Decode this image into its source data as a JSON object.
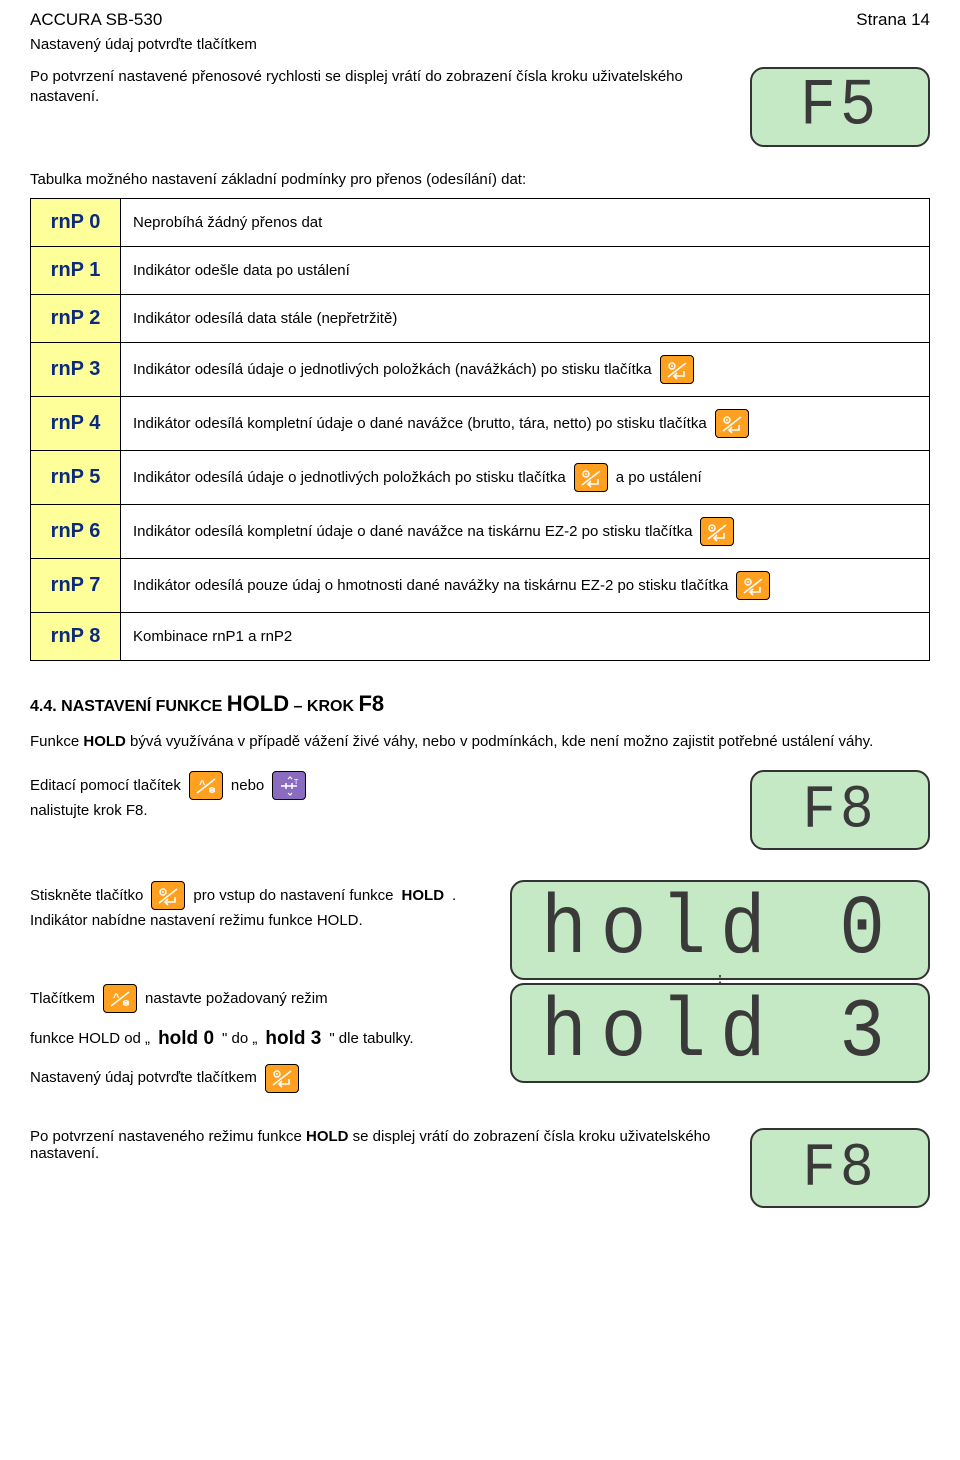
{
  "header": {
    "left": "ACCURA SB-530",
    "right": "Strana 14"
  },
  "intro": {
    "line1": "Nastavený údaj potvrďte tlačítkem",
    "line2": "Po potvrzení nastavené přenosové rychlosti se displej vrátí do zobrazení čísla kroku uživatelského nastavení.",
    "lcd": "F5"
  },
  "table": {
    "intro": "Tabulka možného nastavení základní podmínky pro přenos (odesílání) dat:",
    "rows": [
      {
        "key": "rnP 0",
        "parts": [
          "Neprobíhá žádný přenos dat"
        ]
      },
      {
        "key": "rnP 1",
        "parts": [
          "Indikátor odešle data po ustálení"
        ]
      },
      {
        "key": "rnP 2",
        "parts": [
          "Indikátor odesílá data stále (nepřetržitě)"
        ]
      },
      {
        "key": "rnP 3",
        "parts": [
          "Indikátor odesílá údaje o jednotlivých položkách (navážkách) po stisku tlačítka"
        ],
        "trailing_icon": "enter"
      },
      {
        "key": "rnP 4",
        "parts": [
          "Indikátor odesílá kompletní údaje o dané navážce (brutto, tára, netto) po stisku tlačítka"
        ],
        "trailing_icon": "enter"
      },
      {
        "key": "rnP 5",
        "parts": [
          "Indikátor odesílá údaje o jednotlivých položkách po stisku tlačítka",
          {
            "icon": "enter"
          },
          "a po ustálení"
        ]
      },
      {
        "key": "rnP 6",
        "parts": [
          "Indikátor odesílá kompletní údaje o dané navážce na tiskárnu EZ-2 po stisku tlačítka"
        ],
        "trailing_icon": "enter"
      },
      {
        "key": "rnP 7",
        "parts": [
          "Indikátor odesílá pouze údaj o hmotnosti dané navážky na tiskárnu EZ-2 po stisku tlačítka"
        ],
        "trailing_icon": "enter"
      },
      {
        "key": "rnP 8",
        "parts": [
          "Kombinace rnP1 a rnP2"
        ]
      }
    ]
  },
  "section44": {
    "heading_a": "4.4. NASTAVENÍ FUNKCE ",
    "heading_b": "HOLD",
    "heading_c": " – KROK ",
    "heading_d": "F8",
    "para1a": "Funkce ",
    "para1b": "HOLD",
    "para1c": " bývá využívána v případě vážení živé váhy, nebo v podmínkách, kde není možno zajistit potřebné ustálení váhy.",
    "edit1": "Editací pomocí tlačítek",
    "nebo": "nebo",
    "edit2": "nalistujte krok F8.",
    "lcd_f8": "F8",
    "step2a": "Stiskněte tlačítko",
    "step2b": "pro vstup do nastavení funkce ",
    "step2b_bold": "HOLD",
    "step2b_end": ".",
    "step2c": "Indikátor nabídne nastavení režimu funkce HOLD.",
    "lcd_hold0": "hold 0",
    "step3a": "Tlačítkem",
    "step3b": "nastavte požadovaný režim",
    "step3c_a": "funkce HOLD od „",
    "step3c_b": "hold 0",
    "step3c_c": "\" do „",
    "step3c_d": "hold 3",
    "step3c_e": "\" dle tabulky.",
    "step3d": "Nastavený údaj potvrďte tlačítkem",
    "lcd_hold3": "hold 3",
    "final": "Po potvrzení nastaveného režimu funkce ",
    "final_bold": "HOLD",
    "final_end": " se displej vrátí do zobrazení čísla kroku uživatelského nastavení.",
    "lcd_f8b": "F8"
  },
  "colors": {
    "lcd_bg": "#c5e8c5",
    "key_bg": "#ffff99",
    "key_fg": "#0a2a80",
    "icon_orange": "#ffa020",
    "icon_purple": "#8a6bbf"
  }
}
